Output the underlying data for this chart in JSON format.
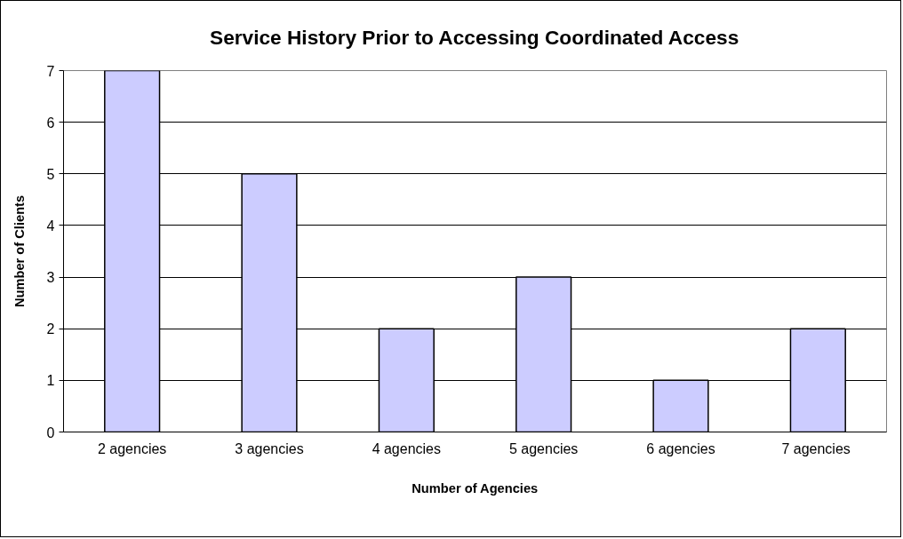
{
  "chart_data": {
    "type": "bar",
    "title": "Service History Prior to Accessing Coordinated Access",
    "xlabel": "Number of Agencies",
    "ylabel": "Number of Clients",
    "categories": [
      "2 agencies",
      "3 agencies",
      "4 agencies",
      "5 agencies",
      "6 agencies",
      "7  agencies"
    ],
    "values": [
      7,
      5,
      2,
      3,
      1,
      2
    ],
    "color": "#ccccff",
    "ylim": [
      0,
      7
    ],
    "yticks": [
      0,
      1,
      2,
      3,
      4,
      5,
      6,
      7
    ],
    "grid": "y"
  }
}
